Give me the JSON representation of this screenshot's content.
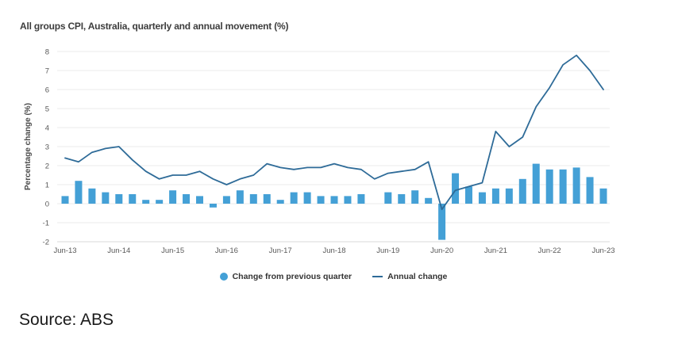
{
  "chart_data": {
    "type": "bar+line",
    "title": "All groups CPI, Australia, quarterly and annual movement (%)",
    "ylabel": "Percentage change (%)",
    "xlabel": "",
    "ylim": [
      -2,
      8
    ],
    "y_ticks": [
      8,
      7,
      6,
      5,
      4,
      3,
      2,
      1,
      0,
      -1,
      -2
    ],
    "grid": "horizontal",
    "legend_position": "bottom",
    "x_tick_labels": [
      "Jun-13",
      "Jun-14",
      "Jun-15",
      "Jun-16",
      "Jun-17",
      "Jun-18",
      "Jun-19",
      "Jun-20",
      "Jun-21",
      "Jun-22",
      "Jun-23"
    ],
    "categories": [
      "Jun-13",
      "Sep-13",
      "Dec-13",
      "Mar-14",
      "Jun-14",
      "Sep-14",
      "Dec-14",
      "Mar-15",
      "Jun-15",
      "Sep-15",
      "Dec-15",
      "Mar-16",
      "Jun-16",
      "Sep-16",
      "Dec-16",
      "Mar-17",
      "Jun-17",
      "Sep-17",
      "Dec-17",
      "Mar-18",
      "Jun-18",
      "Sep-18",
      "Dec-18",
      "Mar-19",
      "Jun-19",
      "Sep-19",
      "Dec-19",
      "Mar-20",
      "Jun-20",
      "Sep-20",
      "Dec-20",
      "Mar-21",
      "Jun-21",
      "Sep-21",
      "Dec-21",
      "Mar-22",
      "Jun-22",
      "Sep-22",
      "Dec-22",
      "Mar-23",
      "Jun-23"
    ],
    "series": [
      {
        "name": "Change from previous quarter",
        "type": "bar",
        "color": "#44a0d6",
        "values": [
          0.4,
          1.2,
          0.8,
          0.6,
          0.5,
          0.5,
          0.2,
          0.2,
          0.7,
          0.5,
          0.4,
          -0.2,
          0.4,
          0.7,
          0.5,
          0.5,
          0.2,
          0.6,
          0.6,
          0.4,
          0.4,
          0.4,
          0.5,
          0.0,
          0.6,
          0.5,
          0.7,
          0.3,
          -1.9,
          1.6,
          0.9,
          0.6,
          0.8,
          0.8,
          1.3,
          2.1,
          1.8,
          1.8,
          1.9,
          1.4,
          0.8
        ]
      },
      {
        "name": "Annual change",
        "type": "line",
        "color": "#2e6b98",
        "values": [
          2.4,
          2.2,
          2.7,
          2.9,
          3.0,
          2.3,
          1.7,
          1.3,
          1.5,
          1.5,
          1.7,
          1.3,
          1.0,
          1.3,
          1.5,
          2.1,
          1.9,
          1.8,
          1.9,
          1.9,
          2.1,
          1.9,
          1.8,
          1.3,
          1.6,
          1.7,
          1.8,
          2.2,
          -0.3,
          0.7,
          0.9,
          1.1,
          3.8,
          3.0,
          3.5,
          5.1,
          6.1,
          7.3,
          7.8,
          7.0,
          6.0
        ]
      }
    ]
  },
  "source": {
    "text": "Source: ABS"
  },
  "colors": {
    "grid": "#ebebeb",
    "baseline": "#d9d9d9",
    "axis_text": "#595959",
    "title_text": "#3d3d3d",
    "legend_text": "#333333"
  }
}
